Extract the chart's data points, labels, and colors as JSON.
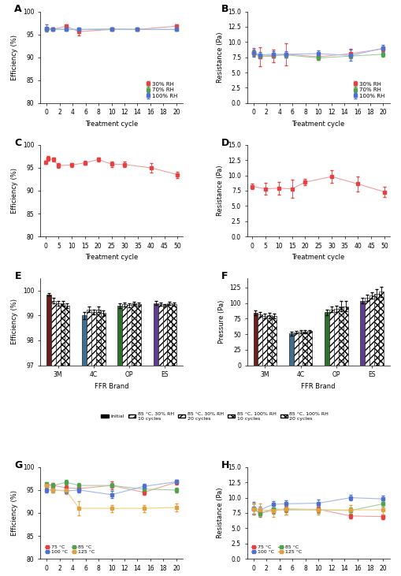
{
  "panel_A": {
    "x": [
      0,
      1,
      3,
      5,
      10,
      14,
      20
    ],
    "red_y": [
      96.2,
      96.1,
      96.8,
      95.6,
      96.1,
      96.1,
      96.8
    ],
    "red_err": [
      0.3,
      0.3,
      0.4,
      0.8,
      0.3,
      0.3,
      0.4
    ],
    "green_y": [
      96.1,
      96.1,
      96.1,
      96.1,
      96.1,
      96.1,
      96.1
    ],
    "green_err": [
      0.2,
      0.2,
      0.2,
      0.2,
      0.2,
      0.2,
      0.2
    ],
    "blue_y": [
      96.4,
      96.2,
      96.1,
      96.1,
      96.2,
      96.1,
      96.1
    ],
    "blue_err": [
      0.8,
      0.3,
      0.3,
      0.3,
      0.3,
      0.3,
      0.3
    ],
    "ylabel": "Efficiency (%)",
    "xlabel": "Treatment cycle",
    "ylim": [
      80,
      100
    ],
    "yticks": [
      80,
      85,
      90,
      95,
      100
    ]
  },
  "panel_B": {
    "x": [
      0,
      1,
      3,
      5,
      10,
      15,
      20
    ],
    "red_y": [
      8.2,
      7.6,
      7.7,
      8.0,
      7.6,
      8.1,
      8.9
    ],
    "red_err": [
      0.5,
      1.5,
      1.0,
      1.8,
      0.5,
      0.8,
      0.4
    ],
    "green_y": [
      8.2,
      7.7,
      7.8,
      7.9,
      7.4,
      7.7,
      8.0
    ],
    "green_err": [
      0.4,
      0.4,
      0.4,
      0.4,
      0.3,
      0.4,
      0.4
    ],
    "blue_y": [
      8.3,
      7.9,
      8.0,
      8.0,
      8.1,
      7.8,
      9.0
    ],
    "blue_err": [
      0.7,
      0.5,
      0.5,
      0.5,
      0.5,
      0.9,
      0.5
    ],
    "ylabel": "Resistance (Pa)",
    "xlabel": "Treatment cycle",
    "ylim": [
      0,
      15
    ],
    "yticks": [
      0.0,
      2.5,
      5.0,
      7.5,
      10.0,
      12.5,
      15.0
    ]
  },
  "panel_C": {
    "x": [
      0,
      1,
      3,
      5,
      10,
      15,
      20,
      25,
      30,
      40,
      50
    ],
    "red_y": [
      96.2,
      97.0,
      96.8,
      95.5,
      95.6,
      96.1,
      96.8,
      95.8,
      95.7,
      95.0,
      93.5
    ],
    "red_err": [
      0.3,
      0.5,
      0.4,
      0.5,
      0.5,
      0.5,
      0.5,
      0.6,
      0.6,
      1.0,
      0.7
    ],
    "ylabel": "Efficiency (%)",
    "xlabel": "Treatment cycle",
    "ylim": [
      80,
      100
    ],
    "yticks": [
      80,
      85,
      90,
      95,
      100
    ]
  },
  "panel_D": {
    "x": [
      0,
      5,
      10,
      15,
      20,
      30,
      40,
      50
    ],
    "red_y": [
      8.2,
      7.8,
      7.9,
      7.8,
      8.9,
      9.8,
      8.6,
      7.3
    ],
    "red_err": [
      0.5,
      1.0,
      1.0,
      1.5,
      0.5,
      1.0,
      1.2,
      0.8
    ],
    "ylabel": "Resistance (Pa)",
    "xlabel": "Treatment cycle",
    "ylim": [
      0,
      15
    ],
    "yticks": [
      0.0,
      2.5,
      5.0,
      7.5,
      10.0,
      12.5,
      15.0
    ]
  },
  "panel_E": {
    "brands": [
      "3M",
      "4C",
      "OP",
      "ES"
    ],
    "initial": [
      99.85,
      99.0,
      99.4,
      99.5
    ],
    "rh30_10cy": [
      99.6,
      99.25,
      99.45,
      99.45
    ],
    "rh30_20cy": [
      99.5,
      99.15,
      99.42,
      99.42
    ],
    "rh100_10cy": [
      99.5,
      99.25,
      99.48,
      99.48
    ],
    "rh100_20cy": [
      99.4,
      99.1,
      99.45,
      99.45
    ],
    "initial_err": [
      0.05,
      0.15,
      0.1,
      0.08
    ],
    "rh30_10cy_err": [
      0.1,
      0.1,
      0.08,
      0.06
    ],
    "rh30_20cy_err": [
      0.1,
      0.1,
      0.08,
      0.05
    ],
    "rh100_10cy_err": [
      0.1,
      0.1,
      0.06,
      0.06
    ],
    "rh100_20cy_err": [
      0.1,
      0.12,
      0.06,
      0.06
    ],
    "ylabel": "Efficiency (%)",
    "xlabel": "FFR Brand",
    "ylim": [
      97,
      100.5
    ]
  },
  "panel_F": {
    "brands": [
      "3M",
      "4C",
      "OP",
      "ES"
    ],
    "initial": [
      84.0,
      51.0,
      85.0,
      104.0
    ],
    "rh30_10cy": [
      82.0,
      53.0,
      90.0,
      108.0
    ],
    "rh30_20cy": [
      79.0,
      54.0,
      91.0,
      112.0
    ],
    "rh100_10cy": [
      80.0,
      54.0,
      95.0,
      115.0
    ],
    "rh100_20cy": [
      79.0,
      55.0,
      95.0,
      118.0
    ],
    "initial_err": [
      4.0,
      3.0,
      5.0,
      4.0
    ],
    "rh30_10cy_err": [
      4.0,
      2.0,
      5.0,
      5.0
    ],
    "rh30_20cy_err": [
      4.0,
      2.0,
      5.0,
      5.0
    ],
    "rh100_10cy_err": [
      4.0,
      2.0,
      8.0,
      8.0
    ],
    "rh100_20cy_err": [
      4.0,
      2.0,
      8.0,
      8.0
    ],
    "ylabel": "Pressure (Pa)",
    "xlabel": "FFR Brand",
    "ylim": [
      0,
      140
    ]
  },
  "panel_G": {
    "x": [
      0,
      1,
      3,
      5,
      10,
      15,
      20
    ],
    "r75_y": [
      96.1,
      96.0,
      95.5,
      95.3,
      96.0,
      94.5,
      96.7
    ],
    "r75_err": [
      0.5,
      0.5,
      0.5,
      0.5,
      0.8,
      0.5,
      0.5
    ],
    "r85_y": [
      96.3,
      96.0,
      96.7,
      96.0,
      96.0,
      95.2,
      95.0
    ],
    "r85_err": [
      0.4,
      0.5,
      0.5,
      0.5,
      0.5,
      0.5,
      0.5
    ],
    "r100_y": [
      95.0,
      95.0,
      94.8,
      95.0,
      94.0,
      95.8,
      96.8
    ],
    "r100_err": [
      0.5,
      0.5,
      0.5,
      0.5,
      0.8,
      0.5,
      0.5
    ],
    "r125_y": [
      96.1,
      95.0,
      94.9,
      91.0,
      91.0,
      91.0,
      91.2
    ],
    "r125_err": [
      0.5,
      0.5,
      0.8,
      1.5,
      0.8,
      0.8,
      0.8
    ],
    "ylabel": "Efficiency (%)",
    "xlabel": "Treatment cycle",
    "ylim": [
      80,
      100
    ],
    "yticks": [
      80,
      85,
      90,
      95,
      100
    ]
  },
  "panel_H": {
    "x": [
      0,
      1,
      3,
      5,
      10,
      15,
      20
    ],
    "r75_y": [
      8.2,
      7.5,
      7.9,
      8.1,
      8.1,
      7.0,
      6.9
    ],
    "r75_err": [
      0.8,
      0.4,
      0.4,
      0.5,
      0.5,
      0.4,
      0.4
    ],
    "r85_y": [
      8.2,
      7.4,
      8.2,
      8.0,
      8.0,
      7.9,
      9.0
    ],
    "r85_err": [
      0.8,
      0.6,
      0.8,
      0.8,
      0.5,
      0.5,
      0.5
    ],
    "r100_y": [
      8.3,
      8.0,
      8.9,
      9.0,
      9.1,
      10.0,
      9.8
    ],
    "r100_err": [
      1.0,
      0.5,
      0.5,
      0.5,
      0.6,
      0.5,
      0.5
    ],
    "r125_y": [
      8.2,
      8.0,
      7.9,
      8.2,
      8.0,
      8.0,
      8.0
    ],
    "r125_err": [
      0.8,
      1.0,
      1.0,
      1.0,
      0.8,
      0.8,
      0.8
    ],
    "ylabel": "Resistance (Pa)",
    "xlabel": "Treatment cycle",
    "ylim": [
      0,
      15
    ],
    "yticks": [
      0.0,
      2.5,
      5.0,
      7.5,
      10.0,
      12.5,
      15.0
    ]
  },
  "colors": {
    "red": "#e84040",
    "light_red": "#f0a0a0",
    "green": "#50a050",
    "light_green": "#a0d0a0",
    "blue": "#5070d0",
    "light_blue": "#a0b8f0",
    "dark_brown": "#6b1c1c",
    "steel_blue": "#3d6e8e",
    "dark_green": "#2e6e2e",
    "dark_purple": "#5e3d8e",
    "orange": "#e0a040"
  }
}
